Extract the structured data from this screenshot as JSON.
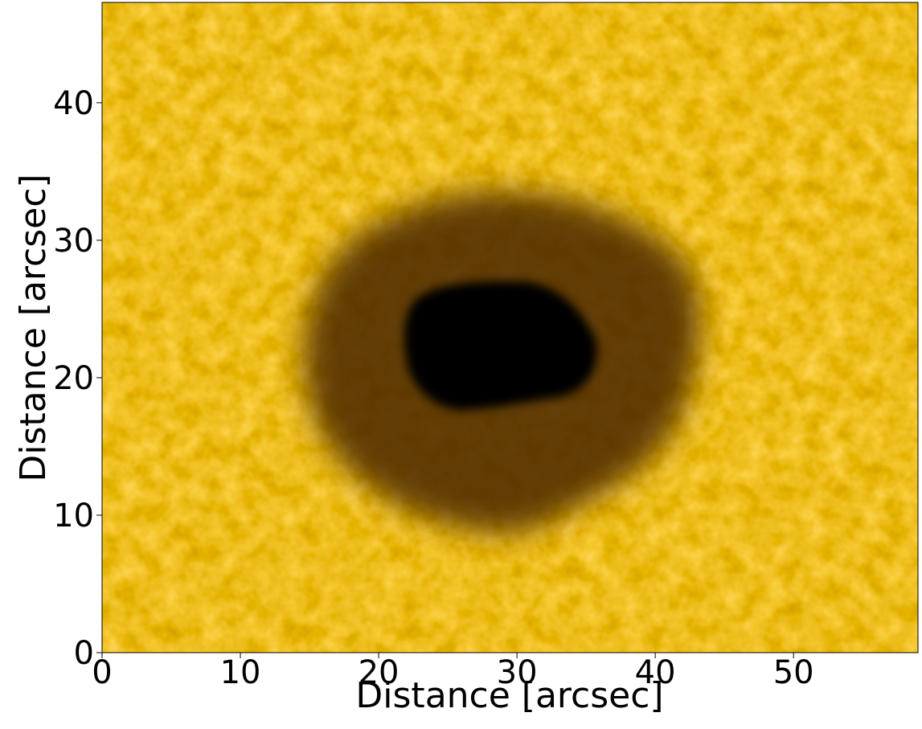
{
  "chart_data": {
    "type": "image",
    "xlabel": "Distance [arcsec]",
    "ylabel": "Distance [arcsec]",
    "xlim": [
      0,
      59
    ],
    "ylim": [
      0,
      47.3
    ],
    "xticks": [
      0,
      10,
      20,
      30,
      40,
      50
    ],
    "yticks": [
      0,
      10,
      20,
      30,
      40
    ]
  }
}
